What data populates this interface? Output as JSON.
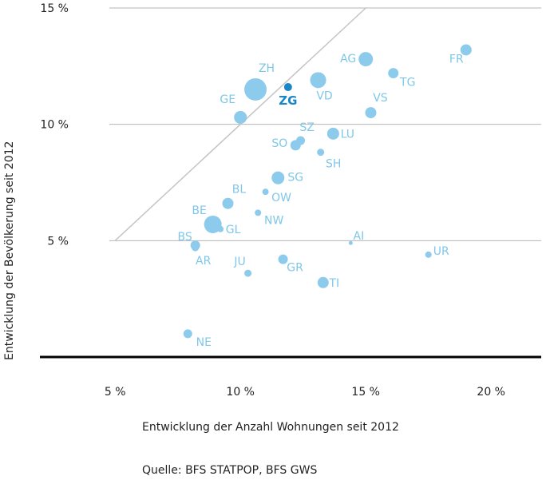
{
  "chart_data": {
    "type": "scatter",
    "xlabel": "Entwicklung der Anzahl Wohnungen seit 2012",
    "ylabel": "Entwicklung der Bevölkerung seit 2012",
    "xlim": [
      2.0,
      22.0
    ],
    "ylim": [
      0.0,
      15.0
    ],
    "xticks": [
      5,
      10,
      15,
      20
    ],
    "xtick_labels": [
      "5 %",
      "10 %",
      "15 %",
      "20 %"
    ],
    "yticks": [
      5,
      10,
      15
    ],
    "ytick_labels": [
      "5 %",
      "10 %",
      "15 %"
    ],
    "grid": "horizontal",
    "reference_line": {
      "from": [
        5,
        5
      ],
      "to": [
        15,
        15
      ]
    },
    "bubble_color": "#8ccbec",
    "highlight_color": "#1a86c7",
    "points": [
      {
        "label": "ZH",
        "x": 10.6,
        "y": 11.5,
        "size": 28,
        "highlight": false
      },
      {
        "label": "ZG",
        "x": 11.9,
        "y": 11.6,
        "size": 10,
        "highlight": true
      },
      {
        "label": "AG",
        "x": 15.0,
        "y": 12.8,
        "size": 18,
        "highlight": false
      },
      {
        "label": "FR",
        "x": 19.0,
        "y": 13.2,
        "size": 14,
        "highlight": false
      },
      {
        "label": "TG",
        "x": 16.1,
        "y": 12.2,
        "size": 13,
        "highlight": false
      },
      {
        "label": "VD",
        "x": 13.1,
        "y": 11.9,
        "size": 20,
        "highlight": false
      },
      {
        "label": "GE",
        "x": 10.0,
        "y": 10.3,
        "size": 16,
        "highlight": false
      },
      {
        "label": "VS",
        "x": 15.2,
        "y": 10.5,
        "size": 14,
        "highlight": false
      },
      {
        "label": "SZ",
        "x": 12.4,
        "y": 9.3,
        "size": 11,
        "highlight": false
      },
      {
        "label": "LU",
        "x": 13.7,
        "y": 9.6,
        "size": 15,
        "highlight": false
      },
      {
        "label": "SO",
        "x": 12.2,
        "y": 9.1,
        "size": 13,
        "highlight": false
      },
      {
        "label": "SH",
        "x": 13.2,
        "y": 8.8,
        "size": 9,
        "highlight": false
      },
      {
        "label": "SG",
        "x": 11.5,
        "y": 7.7,
        "size": 16,
        "highlight": false
      },
      {
        "label": "BL",
        "x": 9.5,
        "y": 6.6,
        "size": 14,
        "highlight": false
      },
      {
        "label": "OW",
        "x": 11.0,
        "y": 7.1,
        "size": 8,
        "highlight": false
      },
      {
        "label": "NW",
        "x": 10.7,
        "y": 6.2,
        "size": 8,
        "highlight": false
      },
      {
        "label": "BE",
        "x": 8.9,
        "y": 5.7,
        "size": 22,
        "highlight": false
      },
      {
        "label": "GL",
        "x": 9.2,
        "y": 5.5,
        "size": 8,
        "highlight": false
      },
      {
        "label": "BS",
        "x": 8.2,
        "y": 4.8,
        "size": 12,
        "highlight": false
      },
      {
        "label": "AR",
        "x": 8.2,
        "y": 4.7,
        "size": 9,
        "highlight": false
      },
      {
        "label": "AI",
        "x": 14.4,
        "y": 4.9,
        "size": 5,
        "highlight": false
      },
      {
        "label": "UR",
        "x": 17.5,
        "y": 4.4,
        "size": 8,
        "highlight": false
      },
      {
        "label": "JU",
        "x": 10.3,
        "y": 3.6,
        "size": 9,
        "highlight": false
      },
      {
        "label": "GR",
        "x": 11.7,
        "y": 4.2,
        "size": 12,
        "highlight": false
      },
      {
        "label": "TI",
        "x": 13.3,
        "y": 3.2,
        "size": 14,
        "highlight": false
      },
      {
        "label": "NE",
        "x": 7.9,
        "y": 1.0,
        "size": 11,
        "highlight": false
      }
    ]
  },
  "source": "Quelle: BFS STATPOP, BFS GWS"
}
